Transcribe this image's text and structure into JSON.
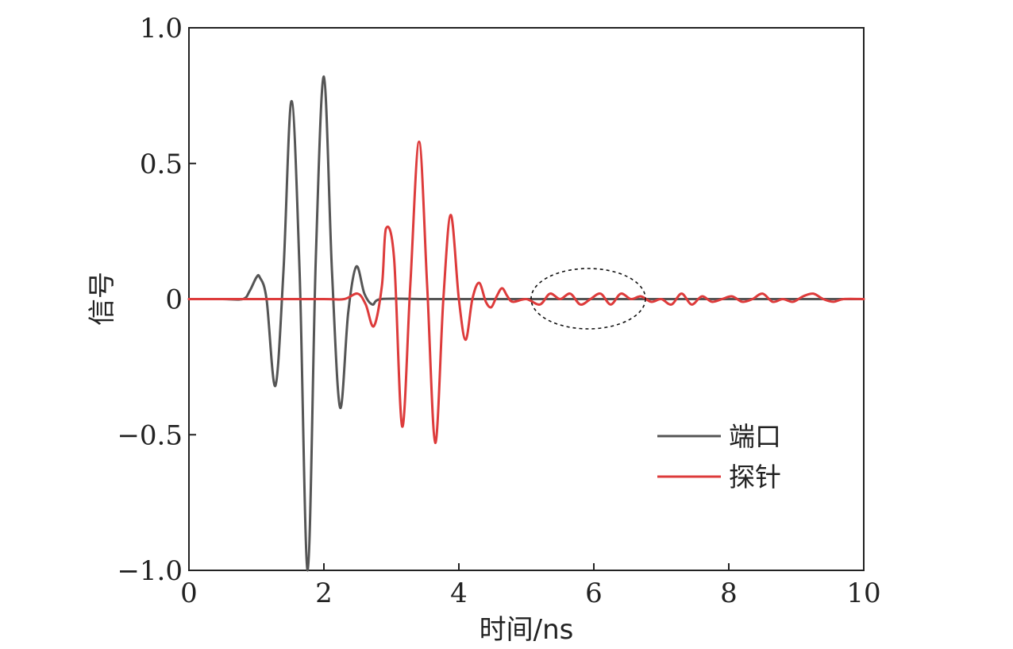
{
  "chart_data": {
    "type": "line",
    "xlabel": "时间/ns",
    "ylabel": "信号",
    "xlim": [
      0,
      10
    ],
    "ylim": [
      -1.0,
      1.0
    ],
    "xticks": [
      0,
      2,
      4,
      6,
      8,
      10
    ],
    "yticks": [
      -1.0,
      -0.5,
      0,
      0.5,
      1.0
    ],
    "xtick_labels": [
      "0",
      "2",
      "4",
      "6",
      "8",
      "10"
    ],
    "ytick_labels": [
      "−1.0",
      "−0.5",
      "0",
      "0.5",
      "1.0"
    ],
    "grid": false,
    "legend": "bottom-right",
    "annotations": [
      "dashed ellipse highlighting the small oscillations around 5.1–6.8 ns"
    ],
    "series": [
      {
        "name": "端口",
        "color": "#555555",
        "x": [
          0,
          0.5,
          0.8,
          0.9,
          1.0,
          1.05,
          1.15,
          1.28,
          1.4,
          1.52,
          1.64,
          1.76,
          1.88,
          2.0,
          2.12,
          2.24,
          2.36,
          2.48,
          2.6,
          2.72,
          2.85,
          3.5,
          4.0,
          5.0,
          6.0,
          7.0,
          8.0,
          9.0,
          10.0
        ],
        "y": [
          0,
          0,
          0.0,
          0.03,
          0.08,
          0.08,
          0.0,
          -0.32,
          0.1,
          0.73,
          0.1,
          -1.0,
          0.15,
          0.82,
          0.1,
          -0.4,
          -0.05,
          0.12,
          0.02,
          -0.02,
          0.0,
          0.0,
          0.0,
          0.0,
          0.0,
          0.0,
          0.0,
          0.0,
          0.0
        ]
      },
      {
        "name": "探针",
        "color": "#dd3b3b",
        "x": [
          0,
          1.0,
          2.0,
          2.3,
          2.5,
          2.62,
          2.74,
          2.86,
          2.92,
          3.04,
          3.16,
          3.28,
          3.41,
          3.53,
          3.65,
          3.77,
          3.88,
          4.0,
          4.1,
          4.2,
          4.3,
          4.4,
          4.48,
          4.56,
          4.64,
          4.72,
          4.8,
          5.0,
          5.2,
          5.35,
          5.5,
          5.65,
          5.8,
          5.95,
          6.1,
          6.25,
          6.4,
          6.55,
          6.7,
          6.85,
          7.0,
          7.15,
          7.3,
          7.45,
          7.6,
          7.75,
          7.9,
          8.05,
          8.2,
          8.35,
          8.5,
          8.65,
          8.8,
          8.95,
          9.1,
          9.25,
          9.4,
          9.55,
          9.7,
          10.0
        ],
        "y": [
          0,
          0.0,
          0.0,
          0.0,
          0.02,
          -0.02,
          -0.1,
          0.05,
          0.26,
          0.15,
          -0.47,
          0.05,
          0.58,
          0.05,
          -0.53,
          0.0,
          0.31,
          0.0,
          -0.15,
          0.0,
          0.06,
          -0.01,
          -0.03,
          0.01,
          0.04,
          0.01,
          -0.01,
          0.0,
          -0.02,
          0.02,
          0.0,
          0.02,
          -0.02,
          0.0,
          0.02,
          -0.02,
          0.02,
          0.0,
          0.01,
          -0.01,
          0.0,
          -0.02,
          0.02,
          -0.02,
          0.01,
          -0.01,
          0.0,
          0.01,
          -0.01,
          0.0,
          0.02,
          -0.01,
          0.0,
          -0.01,
          0.01,
          0.02,
          0.0,
          -0.01,
          0.0,
          0.0
        ]
      }
    ]
  }
}
